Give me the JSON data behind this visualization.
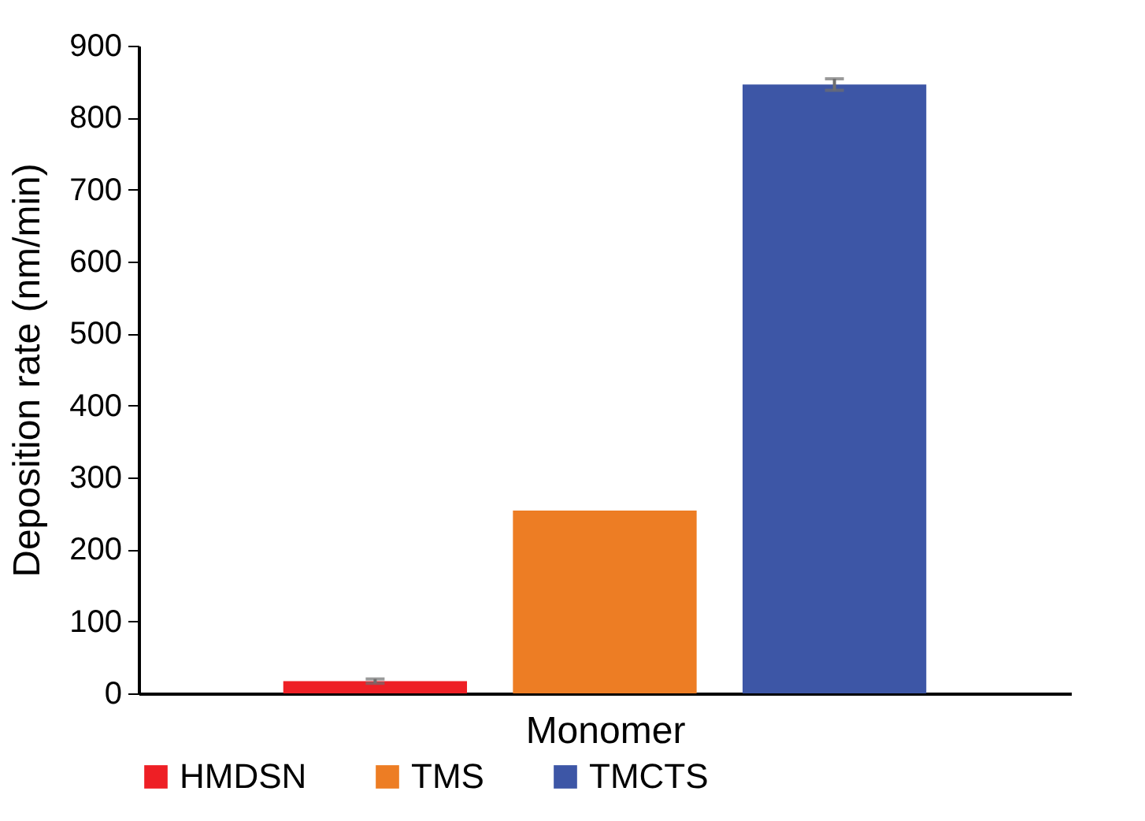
{
  "chart_data": {
    "type": "bar",
    "xlabel": "Monomer",
    "ylabel": "Deposition rate (nm/min)",
    "categories": [
      null
    ],
    "series": [
      {
        "name": "HMDSN",
        "color": "#ee1f25",
        "values": [
          17
        ],
        "errors": [
          3
        ]
      },
      {
        "name": "TMS",
        "color": "#ed7d24",
        "values": [
          254
        ]
      },
      {
        "name": "TMCTS",
        "color": "#3d56a6",
        "values": [
          846
        ],
        "errors": [
          8
        ]
      }
    ],
    "ylim": [
      0,
      900
    ],
    "yticks": [
      0,
      100,
      200,
      300,
      400,
      500,
      600,
      700,
      800,
      900
    ],
    "grid": false,
    "legend": "bottom"
  }
}
